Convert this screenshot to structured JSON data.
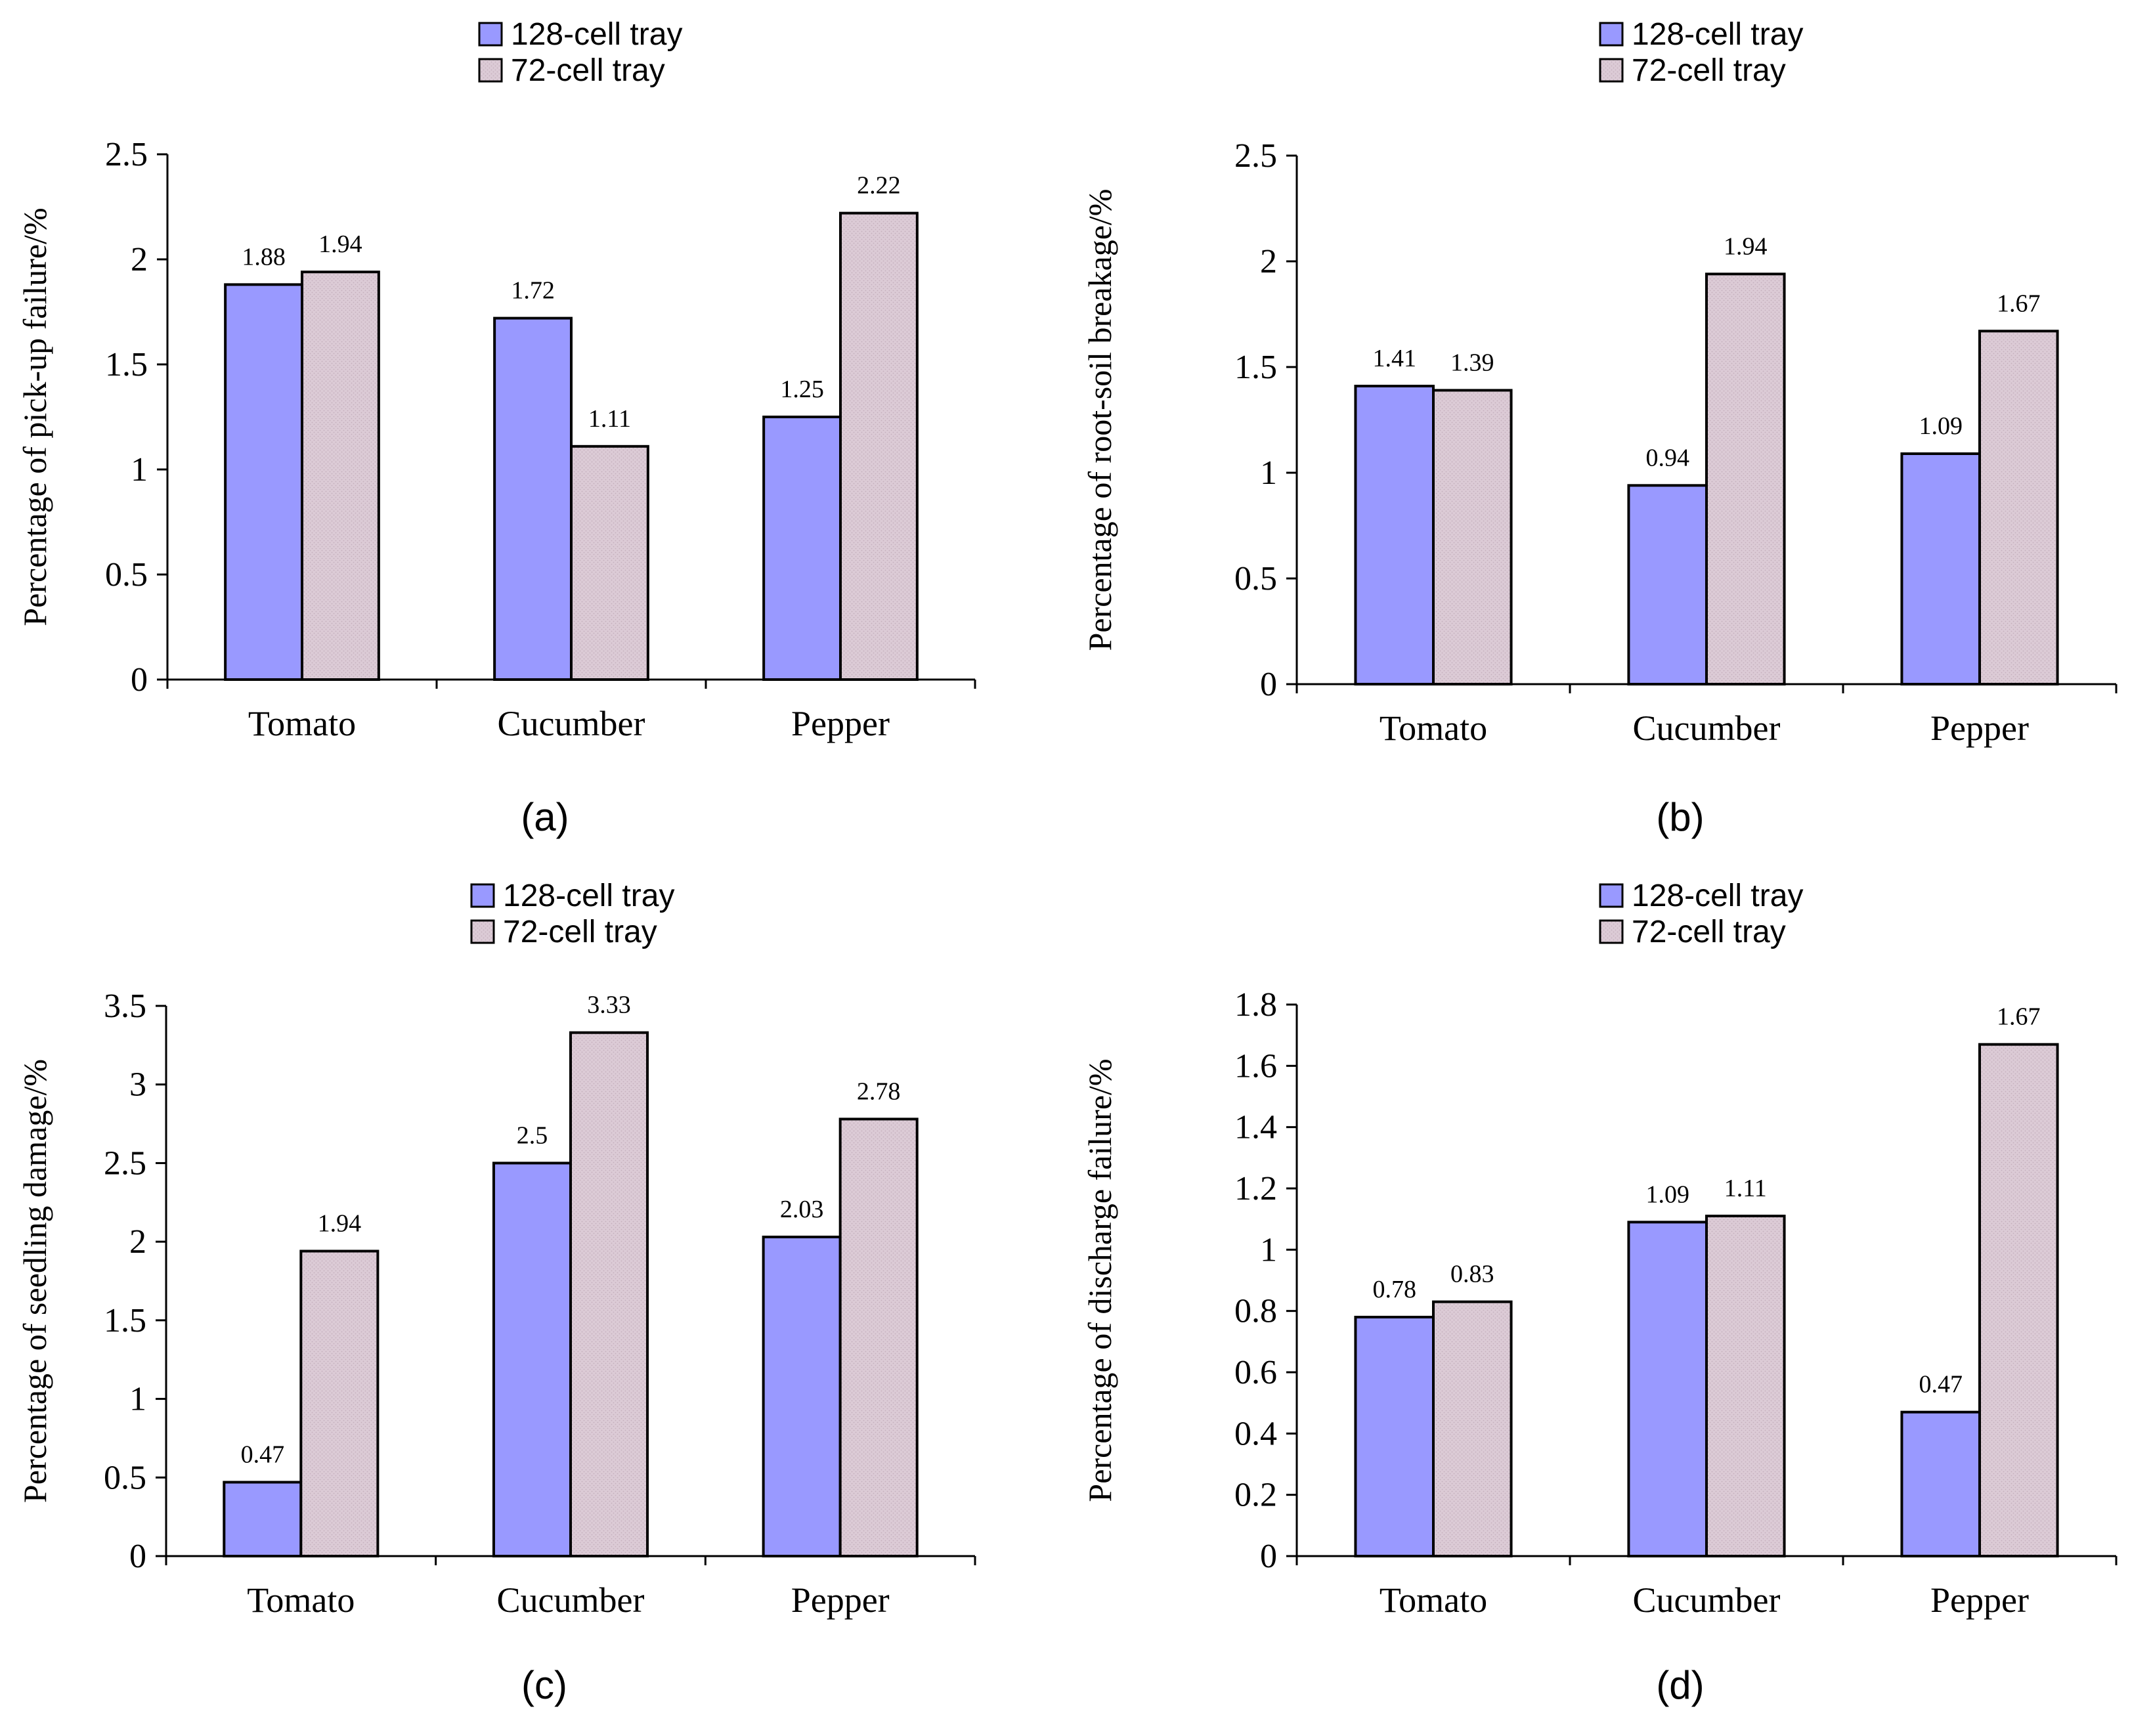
{
  "chart_data": [
    {
      "type": "bar",
      "panel": "(a)",
      "categories": [
        "Tomato",
        "Cucumber",
        "Pepper"
      ],
      "series": [
        {
          "name": "128-cell tray",
          "values": [
            1.88,
            1.72,
            1.25
          ],
          "labels": [
            "1.88",
            "1.72",
            "1.25"
          ]
        },
        {
          "name": "72-cell tray",
          "values": [
            1.94,
            1.11,
            2.22
          ],
          "labels": [
            "1.94",
            "1.11",
            "2.22"
          ]
        }
      ],
      "ylabel": "Percentage of pick-up failure/%",
      "ylim": [
        0,
        2.5
      ],
      "yticks": [
        "0",
        "0.5",
        "1",
        "1.5",
        "2",
        "2.5"
      ],
      "legend": "top-center",
      "grid": false
    },
    {
      "type": "bar",
      "panel": "(b)",
      "categories": [
        "Tomato",
        "Cucumber",
        "Pepper"
      ],
      "series": [
        {
          "name": "128-cell tray",
          "values": [
            1.41,
            0.94,
            1.09
          ],
          "labels": [
            "1.41",
            "0.94",
            "1.09"
          ]
        },
        {
          "name": "72-cell tray",
          "values": [
            1.39,
            1.94,
            1.67
          ],
          "labels": [
            "1.39",
            "1.94",
            "1.67"
          ]
        }
      ],
      "ylabel": "Percentage of root-soil breakage/%",
      "ylim": [
        0,
        2.5
      ],
      "yticks": [
        "0",
        "0.5",
        "1",
        "1.5",
        "2",
        "2.5"
      ],
      "legend": "top-center",
      "grid": false
    },
    {
      "type": "bar",
      "panel": "(c)",
      "categories": [
        "Tomato",
        "Cucumber",
        "Pepper"
      ],
      "series": [
        {
          "name": "128-cell tray",
          "values": [
            0.47,
            2.5,
            2.03
          ],
          "labels": [
            "0.47",
            "2.5",
            "2.03"
          ]
        },
        {
          "name": "72-cell tray",
          "values": [
            1.94,
            3.33,
            2.78
          ],
          "labels": [
            "1.94",
            "3.33",
            "2.78"
          ]
        }
      ],
      "ylabel": "Percentage of seedling damage/%",
      "ylim": [
        0,
        3.5
      ],
      "yticks": [
        "0",
        "0.5",
        "1",
        "1.5",
        "2",
        "2.5",
        "3",
        "3.5"
      ],
      "legend": "top-center",
      "grid": false
    },
    {
      "type": "bar",
      "panel": "(d)",
      "categories": [
        "Tomato",
        "Cucumber",
        "Pepper"
      ],
      "series": [
        {
          "name": "128-cell tray",
          "values": [
            0.78,
            1.09,
            0.47
          ],
          "labels": [
            "0.78",
            "1.09",
            "0.47"
          ]
        },
        {
          "name": "72-cell tray",
          "values": [
            0.83,
            1.11,
            1.67
          ],
          "labels": [
            "0.83",
            "1.11",
            "1.67"
          ]
        }
      ],
      "ylabel": "Percentage of discharge failure/%",
      "ylim": [
        0,
        1.8
      ],
      "yticks": [
        "0",
        "0.2",
        "0.4",
        "0.6",
        "0.8",
        "1",
        "1.2",
        "1.4",
        "1.6",
        "1.8"
      ],
      "legend": "top-center",
      "grid": false
    }
  ],
  "colors": {
    "series_128": "#9999ff",
    "series_72": "#dccbd6",
    "axis": "#000000"
  }
}
